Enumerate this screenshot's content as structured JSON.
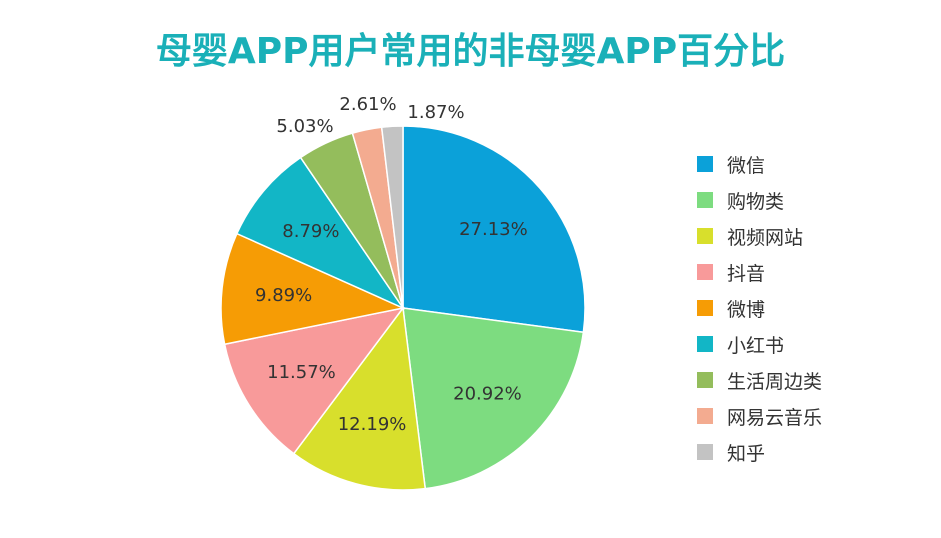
{
  "chart_data": {
    "type": "pie",
    "title": "母婴APP用户常用的非母婴APP百分比",
    "start_angle": "12 o'clock",
    "direction": "clockwise",
    "legend_position": "right",
    "slices": [
      {
        "label": "微信",
        "value": 27.13,
        "display": "27.13%",
        "color": "#0ba1d9"
      },
      {
        "label": "购物类",
        "value": 20.92,
        "display": "20.92%",
        "color": "#7ddc80"
      },
      {
        "label": "视频网站",
        "value": 12.19,
        "display": "12.19%",
        "color": "#d8df2c"
      },
      {
        "label": "抖音",
        "value": 11.57,
        "display": "11.57%",
        "color": "#f89a9a"
      },
      {
        "label": "微博",
        "value": 9.89,
        "display": "9.89%",
        "color": "#f69c05"
      },
      {
        "label": "小红书",
        "value": 8.79,
        "display": "8.79%",
        "color": "#12b6c6"
      },
      {
        "label": "生活周边类",
        "value": 5.03,
        "display": "5.03%",
        "color": "#94bd5c"
      },
      {
        "label": "网易云音乐",
        "value": 2.61,
        "display": "2.61%",
        "color": "#f3ab90"
      },
      {
        "label": "知乎",
        "value": 1.87,
        "display": "1.87%",
        "color": "#c3c3c3"
      }
    ]
  }
}
